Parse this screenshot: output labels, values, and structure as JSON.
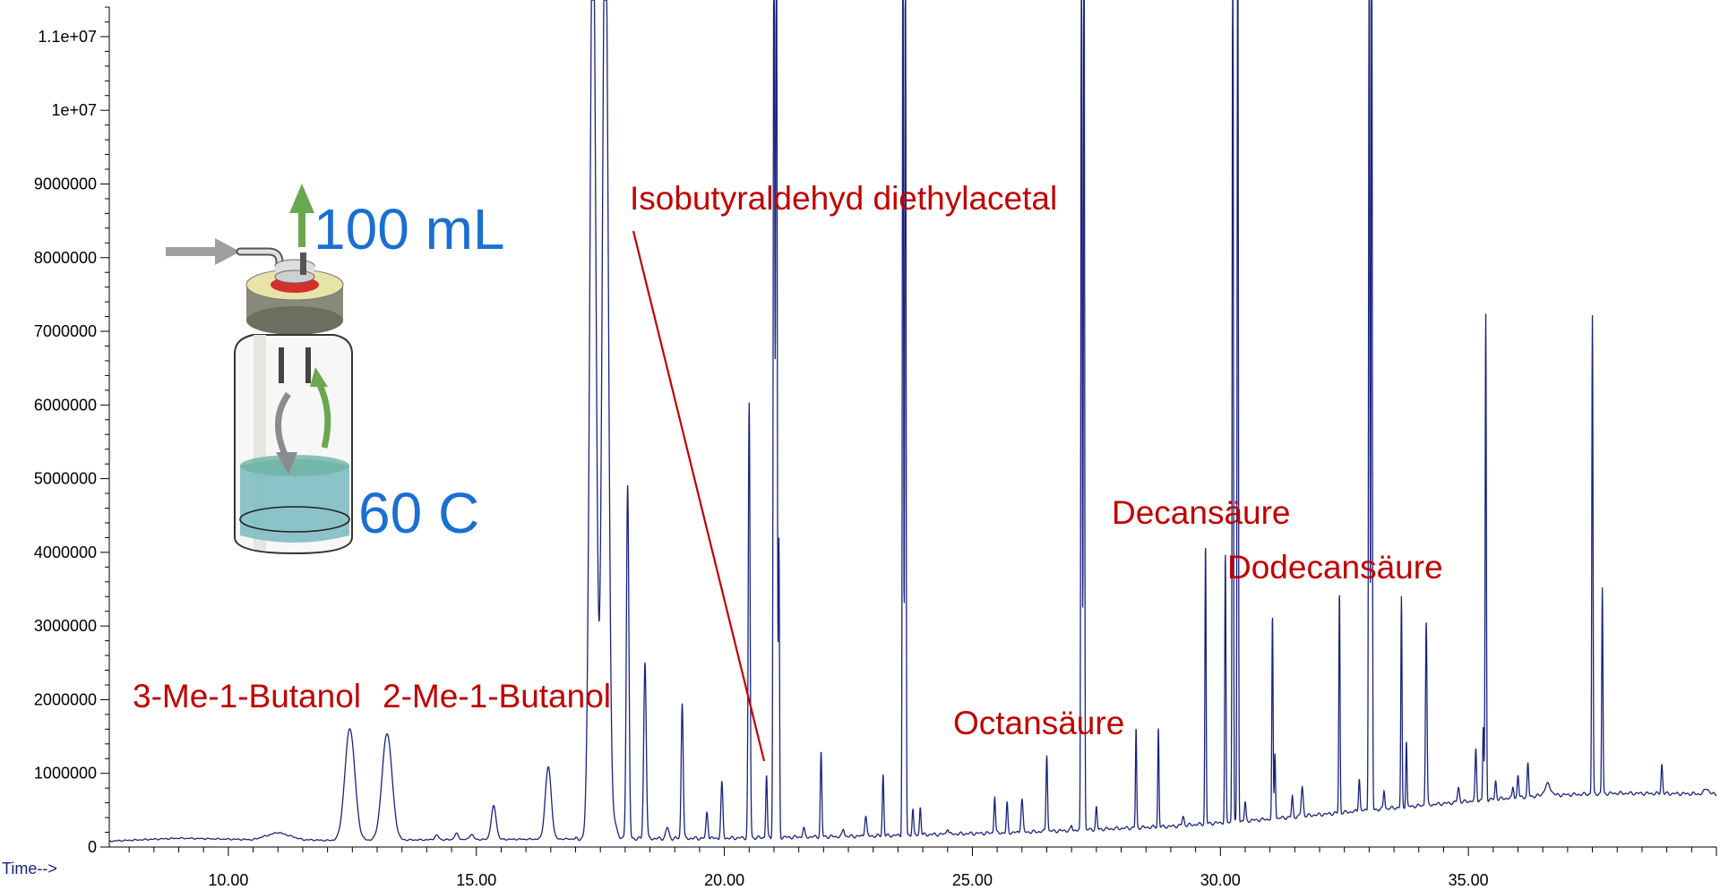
{
  "chart_data": {
    "type": "line",
    "title": "",
    "xlabel": "Time-->",
    "ylabel": "",
    "xlim": [
      7.6,
      40.0
    ],
    "ylim": [
      0,
      11400000
    ],
    "grid": false,
    "x_ticks": [
      10,
      15,
      20,
      25,
      30,
      35
    ],
    "x_tick_labels": [
      "10.00",
      "15.00",
      "20.00",
      "25.00",
      "30.00",
      "35.00"
    ],
    "y_ticks": [
      0,
      1000000,
      2000000,
      3000000,
      4000000,
      5000000,
      6000000,
      7000000,
      8000000,
      9000000,
      10000000,
      11000000
    ],
    "y_tick_labels": [
      "0",
      "1000000",
      "2000000",
      "3000000",
      "4000000",
      "5000000",
      "6000000",
      "7000000",
      "8000000",
      "9000000",
      "1e+07",
      "1.1e+07"
    ],
    "series": [
      {
        "color": "#1a237e",
        "baseline": [
          [
            7.6,
            80000
          ],
          [
            9.0,
            120000
          ],
          [
            10.5,
            100000
          ],
          [
            11.0,
            200000
          ],
          [
            11.5,
            100000
          ],
          [
            12.0,
            90000
          ],
          [
            17.0,
            110000
          ],
          [
            20.0,
            120000
          ],
          [
            23.0,
            150000
          ],
          [
            26.0,
            200000
          ],
          [
            29.0,
            280000
          ],
          [
            31.0,
            380000
          ],
          [
            33.0,
            500000
          ],
          [
            35.0,
            620000
          ],
          [
            36.5,
            700000
          ],
          [
            38.0,
            730000
          ],
          [
            40.0,
            720000
          ]
        ],
        "peaks": [
          [
            12.45,
            1520000,
            0.1
          ],
          [
            13.2,
            1450000,
            0.1
          ],
          [
            14.2,
            60000,
            0.04
          ],
          [
            14.6,
            80000,
            0.04
          ],
          [
            14.9,
            70000,
            0.04
          ],
          [
            15.35,
            450000,
            0.05
          ],
          [
            16.45,
            980000,
            0.06
          ],
          [
            17.35,
            13000000,
            0.06
          ],
          [
            17.6,
            13000000,
            0.06
          ],
          [
            17.8,
            200000,
            0.04
          ],
          [
            18.05,
            4800000,
            0.025
          ],
          [
            18.4,
            2400000,
            0.025
          ],
          [
            18.85,
            150000,
            0.03
          ],
          [
            19.15,
            1850000,
            0.02
          ],
          [
            19.65,
            350000,
            0.02
          ],
          [
            19.95,
            750000,
            0.02
          ],
          [
            20.5,
            5900000,
            0.018
          ],
          [
            20.85,
            850000,
            0.015
          ],
          [
            21.0,
            13000000,
            0.015
          ],
          [
            21.05,
            13000000,
            0.015
          ],
          [
            21.1,
            4000000,
            0.012
          ],
          [
            21.6,
            120000,
            0.02
          ],
          [
            21.95,
            1150000,
            0.015
          ],
          [
            22.4,
            100000,
            0.02
          ],
          [
            22.85,
            280000,
            0.02
          ],
          [
            23.2,
            830000,
            0.015
          ],
          [
            23.6,
            13000000,
            0.012
          ],
          [
            23.65,
            13000000,
            0.012
          ],
          [
            23.8,
            350000,
            0.015
          ],
          [
            23.95,
            380000,
            0.015
          ],
          [
            24.5,
            80000,
            0.02
          ],
          [
            25.45,
            500000,
            0.015
          ],
          [
            25.7,
            400000,
            0.015
          ],
          [
            26.0,
            450000,
            0.02
          ],
          [
            26.5,
            1050000,
            0.015
          ],
          [
            27.0,
            60000,
            0.015
          ],
          [
            27.2,
            13000000,
            0.012
          ],
          [
            27.25,
            13000000,
            0.012
          ],
          [
            27.5,
            300000,
            0.015
          ],
          [
            28.3,
            1350000,
            0.012
          ],
          [
            28.75,
            1350000,
            0.012
          ],
          [
            29.25,
            120000,
            0.02
          ],
          [
            29.7,
            3800000,
            0.012
          ],
          [
            30.1,
            3650000,
            0.012
          ],
          [
            30.25,
            13000000,
            0.012
          ],
          [
            30.35,
            13000000,
            0.012
          ],
          [
            30.5,
            250000,
            0.015
          ],
          [
            31.05,
            2750000,
            0.012
          ],
          [
            31.1,
            900000,
            0.012
          ],
          [
            31.45,
            280000,
            0.015
          ],
          [
            31.65,
            400000,
            0.02
          ],
          [
            32.4,
            3000000,
            0.012
          ],
          [
            32.8,
            450000,
            0.015
          ],
          [
            33.0,
            13000000,
            0.012
          ],
          [
            33.05,
            13000000,
            0.012
          ],
          [
            33.3,
            250000,
            0.015
          ],
          [
            33.65,
            2850000,
            0.012
          ],
          [
            33.75,
            900000,
            0.012
          ],
          [
            34.15,
            2500000,
            0.015
          ],
          [
            34.8,
            200000,
            0.02
          ],
          [
            35.15,
            700000,
            0.015
          ],
          [
            35.3,
            1000000,
            0.012
          ],
          [
            35.35,
            6600000,
            0.012
          ],
          [
            35.55,
            250000,
            0.015
          ],
          [
            35.9,
            150000,
            0.015
          ],
          [
            36.0,
            300000,
            0.015
          ],
          [
            36.2,
            450000,
            0.015
          ],
          [
            36.6,
            150000,
            0.06
          ],
          [
            37.5,
            6500000,
            0.012
          ],
          [
            37.7,
            2800000,
            0.012
          ],
          [
            38.9,
            400000,
            0.015
          ],
          [
            39.8,
            80000,
            0.04
          ]
        ]
      }
    ],
    "annotations": [
      {
        "text": "3-Me-1-Butanol"
      },
      {
        "text": "2-Me-1-Butanol"
      },
      {
        "text": "Isobutyraldehyd diethylacetal"
      },
      {
        "text": "Octansäure"
      },
      {
        "text": "Decansäure"
      },
      {
        "text": "Dodecansäure"
      }
    ],
    "inset": {
      "flow_label": "100 mL",
      "temperature_label": "60  C"
    }
  }
}
